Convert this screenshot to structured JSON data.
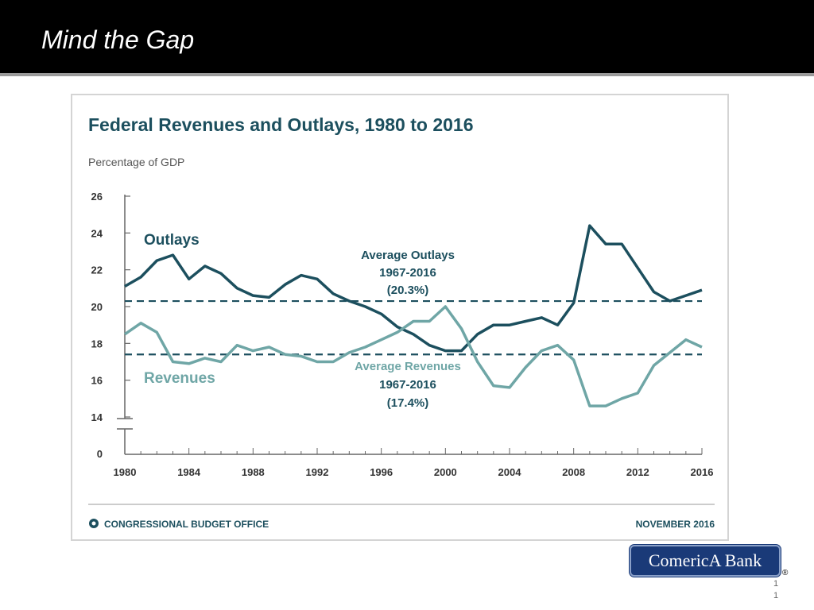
{
  "slide": {
    "title": "Mind the Gap",
    "page_number_lines": [
      "1",
      "1"
    ]
  },
  "logo": {
    "text": "ComericA Bank",
    "reg_mark": "®"
  },
  "colors": {
    "outlays": "#1c4f5e",
    "revenues": "#6fa6a6",
    "header_bg": "#000000",
    "text_dark": "#1c4f5e"
  },
  "chart_data": {
    "type": "line",
    "title": "Federal Revenues and Outlays, 1980 to 2016",
    "ylabel": "Percentage of GDP",
    "xlabel": "",
    "ylim": [
      14,
      26
    ],
    "y_ticks": [
      26,
      24,
      22,
      20,
      18,
      16,
      14
    ],
    "y_zero_label": "0",
    "y_axis_break": true,
    "x_ticks": [
      1980,
      1984,
      1988,
      1992,
      1996,
      2000,
      2004,
      2008,
      2012,
      2016
    ],
    "x": [
      1980,
      1981,
      1982,
      1983,
      1984,
      1985,
      1986,
      1987,
      1988,
      1989,
      1990,
      1991,
      1992,
      1993,
      1994,
      1995,
      1996,
      1997,
      1998,
      1999,
      2000,
      2001,
      2002,
      2003,
      2004,
      2005,
      2006,
      2007,
      2008,
      2009,
      2010,
      2011,
      2012,
      2013,
      2014,
      2015,
      2016
    ],
    "series": [
      {
        "name": "Outlays",
        "values": [
          21.1,
          21.6,
          22.5,
          22.8,
          21.5,
          22.2,
          21.8,
          21.0,
          20.6,
          20.5,
          21.2,
          21.7,
          21.5,
          20.7,
          20.3,
          20.0,
          19.6,
          18.9,
          18.5,
          17.9,
          17.6,
          17.6,
          18.5,
          19.0,
          19.0,
          19.2,
          19.4,
          19.0,
          20.2,
          24.4,
          23.4,
          23.4,
          22.1,
          20.8,
          20.3,
          20.6,
          20.9
        ]
      },
      {
        "name": "Revenues",
        "values": [
          18.5,
          19.1,
          18.6,
          17.0,
          16.9,
          17.2,
          17.0,
          17.9,
          17.6,
          17.8,
          17.4,
          17.3,
          17.0,
          17.0,
          17.5,
          17.8,
          18.2,
          18.6,
          19.2,
          19.2,
          20.0,
          18.8,
          17.0,
          15.7,
          15.6,
          16.7,
          17.6,
          17.9,
          17.1,
          14.6,
          14.6,
          15.0,
          15.3,
          16.8,
          17.5,
          18.2,
          17.8
        ]
      }
    ],
    "averages": [
      {
        "name": "Average Outlays",
        "value": 20.3,
        "label_lines": [
          "Average Outlays",
          "1967-2016",
          "(20.3%)"
        ]
      },
      {
        "name": "Average Revenues",
        "value": 17.4,
        "label_lines": [
          "Average Revenues",
          "1967-2016",
          "(17.4%)"
        ]
      }
    ],
    "series_labels": {
      "outlays": "Outlays",
      "revenues": "Revenues"
    },
    "footer": {
      "source": "CONGRESSIONAL BUDGET OFFICE",
      "date": "NOVEMBER 2016"
    }
  }
}
